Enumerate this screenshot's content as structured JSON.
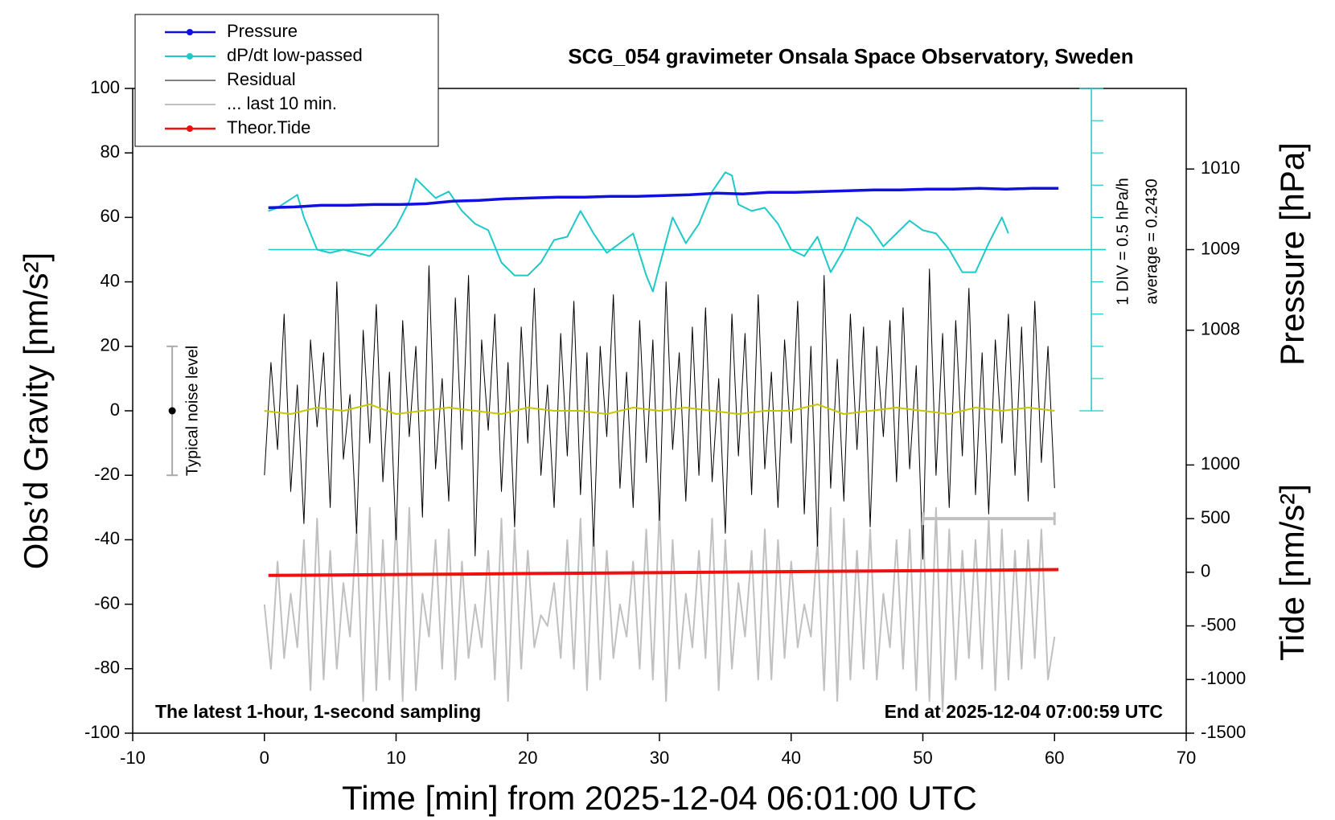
{
  "chart_data": {
    "type": "line",
    "title": "SCG_054 gravimeter Onsala Space Observatory, Sweden",
    "xlabel": "Time [min] from 2025-12-04 06:01:00 UTC",
    "ylabel": "Obs’d Gravity [nm/s²]",
    "y2label": "Pressure [hPa]",
    "y3label": "Tide [nm/s²]",
    "annotations": [
      "The latest 1-hour, 1-second sampling",
      "End at 2025-12-04 07:00:59 UTC"
    ],
    "xlim": [
      -10,
      70
    ],
    "xticks": [
      -10,
      0,
      10,
      20,
      30,
      40,
      50,
      60,
      70
    ],
    "ylim": [
      -100,
      100
    ],
    "yticks": [
      -100,
      -80,
      -60,
      -40,
      -20,
      0,
      20,
      40,
      60,
      80,
      100
    ],
    "y2lim": [
      1003,
      1011
    ],
    "y2ticks": [
      1008,
      1009,
      1010
    ],
    "y3lim": [
      -1500,
      4510
    ],
    "y3ticks": [
      -1500,
      -1000,
      -500,
      0,
      500,
      1000
    ],
    "legend_loc": "upper left",
    "dpdt_scale": {
      "x": 62.8,
      "ticks": [
        0,
        10,
        20,
        30,
        40,
        50,
        60,
        70,
        80,
        90,
        100
      ],
      "baseline": 50,
      "color": "#20c8c8",
      "label": "1 DIV = 0.5 hPa/h",
      "average_label": "average = 0.2430"
    },
    "noise_level": {
      "x": -7,
      "center": 0,
      "low": -20,
      "high": 20,
      "label": "Typical noise level"
    },
    "last10_bar": {
      "x": [
        50,
        60
      ],
      "value": 500,
      "axis": "y3",
      "color": "#c0c0c0"
    },
    "series": [
      {
        "name": "Pressure",
        "color": "#1010e0",
        "axis": "y2",
        "width": 3.5,
        "marker": true,
        "x": [
          0.3,
          2.3,
          4.3,
          6.3,
          8.3,
          10.3,
          12.3,
          14.3,
          16.3,
          18.3,
          20.3,
          22.3,
          24.3,
          26.3,
          28.3,
          30.3,
          32.3,
          34.3,
          36.3,
          38.3,
          40.3,
          42.3,
          44.3,
          46.3,
          48.3,
          50.3,
          52.3,
          54.3,
          56.3,
          58.3,
          60.3
        ],
        "values": [
          1009.52,
          1009.53,
          1009.55,
          1009.55,
          1009.56,
          1009.56,
          1009.57,
          1009.6,
          1009.61,
          1009.63,
          1009.64,
          1009.65,
          1009.65,
          1009.66,
          1009.66,
          1009.67,
          1009.68,
          1009.7,
          1009.69,
          1009.71,
          1009.71,
          1009.72,
          1009.73,
          1009.74,
          1009.74,
          1009.75,
          1009.75,
          1009.76,
          1009.75,
          1009.76,
          1009.76
        ]
      },
      {
        "name": "dP/dt low-passed",
        "color": "#20c8c8",
        "axis": "y",
        "width": 2,
        "marker": true,
        "x": [
          0.3,
          1,
          2.5,
          3,
          4,
          5,
          6,
          7,
          8,
          9,
          10,
          11,
          11.5,
          12,
          13,
          14,
          15,
          16,
          17,
          18,
          19,
          20,
          21,
          22,
          23,
          24,
          25,
          26,
          27,
          28,
          29,
          29.5,
          30,
          31,
          32,
          33,
          34,
          35,
          35.5,
          36,
          37,
          38,
          39,
          40,
          41,
          42,
          43,
          44,
          45,
          46,
          47,
          48,
          49,
          50,
          51,
          52,
          53,
          54,
          55,
          56,
          56.5
        ],
        "values": [
          62,
          63,
          67,
          60,
          50,
          49,
          50,
          49,
          48,
          52,
          57,
          65,
          72,
          70,
          66,
          68,
          62,
          58,
          56,
          46,
          42,
          42,
          46,
          53,
          54,
          62,
          55,
          49,
          52,
          55,
          42,
          37,
          45,
          60,
          52,
          58,
          68,
          74,
          73,
          64,
          62,
          63,
          58,
          50,
          48,
          54,
          43,
          50,
          60,
          57,
          51,
          55,
          59,
          56,
          55,
          50,
          43,
          43,
          52,
          60,
          55
        ]
      },
      {
        "name": "Residual",
        "color": "#000000",
        "axis": "y",
        "width": 1,
        "marker": false,
        "x": [
          0,
          0.5,
          1,
          1.5,
          2,
          2.5,
          3,
          3.5,
          4,
          4.5,
          5,
          5.5,
          6,
          6.5,
          7,
          7.5,
          8,
          8.5,
          9,
          9.5,
          10,
          10.5,
          11,
          11.5,
          12,
          12.5,
          13,
          13.5,
          14,
          14.5,
          15,
          15.5,
          16,
          16.5,
          17,
          17.5,
          18,
          18.5,
          19,
          19.5,
          20,
          20.5,
          21,
          21.5,
          22,
          22.5,
          23,
          23.5,
          24,
          24.5,
          25,
          25.5,
          26,
          26.5,
          27,
          27.5,
          28,
          28.5,
          29,
          29.5,
          30,
          30.5,
          31,
          31.5,
          32,
          32.5,
          33,
          33.5,
          34,
          34.5,
          35,
          35.5,
          36,
          36.5,
          37,
          37.5,
          38,
          38.5,
          39,
          39.5,
          40,
          40.5,
          41,
          41.5,
          42,
          42.5,
          43,
          43.5,
          44,
          44.5,
          45,
          45.5,
          46,
          46.5,
          47,
          47.5,
          48,
          48.5,
          49,
          49.5,
          50,
          50.5,
          51,
          51.5,
          52,
          52.5,
          53,
          53.5,
          54,
          54.5,
          55,
          55.5,
          56,
          56.5,
          57,
          57.5,
          58,
          58.5,
          59,
          59.5,
          60
        ],
        "values": [
          -20,
          15,
          -12,
          30,
          -25,
          8,
          -35,
          22,
          -5,
          18,
          -30,
          40,
          -15,
          5,
          -38,
          25,
          -10,
          33,
          -22,
          12,
          -40,
          28,
          -8,
          20,
          -33,
          45,
          -18,
          10,
          -28,
          35,
          -12,
          42,
          -45,
          22,
          -6,
          30,
          -25,
          15,
          -36,
          26,
          -10,
          38,
          -20,
          8,
          -30,
          24,
          -14,
          34,
          -26,
          18,
          -42,
          20,
          -8,
          36,
          -24,
          12,
          -30,
          28,
          -16,
          22,
          -34,
          40,
          -12,
          18,
          -28,
          26,
          -20,
          32,
          -22,
          10,
          -38,
          30,
          -14,
          24,
          -26,
          36,
          -18,
          12,
          -30,
          22,
          -10,
          34,
          -32,
          20,
          -42,
          42,
          -24,
          16,
          -28,
          30,
          -12,
          26,
          -36,
          20,
          -8,
          28,
          -22,
          32,
          -18,
          14,
          -46,
          44,
          -20,
          24,
          -30,
          28,
          -14,
          38,
          -26,
          18,
          -32,
          22,
          -10,
          30,
          -20,
          26,
          -28,
          34,
          -16,
          20,
          -24
        ]
      },
      {
        "name": "... last 10 min.",
        "color": "#c0c0c0",
        "axis": "y3",
        "width": 2,
        "marker": false,
        "x": [
          0,
          0.5,
          1,
          1.5,
          2,
          2.5,
          3,
          3.5,
          4,
          4.5,
          5,
          5.5,
          6,
          6.5,
          7,
          7.5,
          8,
          8.5,
          9,
          9.5,
          10,
          10.5,
          11,
          11.5,
          12,
          12.5,
          13,
          13.5,
          14,
          14.5,
          15,
          15.5,
          16,
          16.5,
          17,
          17.5,
          18,
          18.5,
          19,
          19.5,
          20,
          20.5,
          21,
          21.5,
          22,
          22.5,
          23,
          23.5,
          24,
          24.5,
          25,
          25.5,
          26,
          26.5,
          27,
          27.5,
          28,
          28.5,
          29,
          29.5,
          30,
          30.5,
          31,
          31.5,
          32,
          32.5,
          33,
          33.5,
          34,
          34.5,
          35,
          35.5,
          36,
          36.5,
          37,
          37.5,
          38,
          38.5,
          39,
          39.5,
          40,
          40.5,
          41,
          41.5,
          42,
          42.5,
          43,
          43.5,
          44,
          44.5,
          45,
          45.5,
          46,
          46.5,
          47,
          47.5,
          48,
          48.5,
          49,
          49.5,
          50,
          50.5,
          51,
          51.5,
          52,
          52.5,
          53,
          53.5,
          54,
          54.5,
          55,
          55.5,
          56,
          56.5,
          57,
          57.5,
          58,
          58.5,
          59,
          59.5,
          60
        ],
        "values": [
          -300,
          -900,
          100,
          -800,
          -200,
          -700,
          300,
          -1100,
          500,
          -1000,
          200,
          -900,
          -100,
          -600,
          400,
          -1200,
          600,
          -1100,
          300,
          -1000,
          500,
          -1200,
          600,
          -1100,
          -200,
          -600,
          300,
          -900,
          400,
          -1000,
          100,
          -800,
          -300,
          -700,
          200,
          -1000,
          500,
          -1200,
          400,
          -900,
          200,
          -700,
          -400,
          -500,
          -100,
          -800,
          300,
          -900,
          500,
          -1100,
          400,
          -1000,
          200,
          -800,
          -300,
          -600,
          100,
          -900,
          400,
          -1000,
          600,
          -1200,
          300,
          -900,
          -200,
          -700,
          200,
          -800,
          500,
          -1100,
          300,
          -900,
          -100,
          -600,
          200,
          -1000,
          400,
          -1000,
          300,
          -800,
          100,
          -700,
          -300,
          -600,
          300,
          -1100,
          600,
          -1200,
          500,
          -1000,
          200,
          -900,
          400,
          -1000,
          -200,
          -700,
          300,
          -900,
          400,
          -1100,
          500,
          -1200,
          600,
          -1300,
          400,
          -1000,
          200,
          -800,
          300,
          -900,
          500,
          -1100,
          400,
          -1000,
          200,
          -900,
          300,
          -800,
          400,
          -1000,
          -600
        ]
      },
      {
        "name": "Theor.Tide",
        "color": "#f01010",
        "axis": "y3",
        "width": 4,
        "marker": true,
        "x": [
          0.3,
          5.3,
          10.3,
          15.3,
          20.3,
          25.3,
          30.3,
          35.3,
          40.3,
          45.3,
          50.3,
          55.3,
          60.3
        ],
        "values": [
          -30,
          -26,
          -21,
          -17,
          -12,
          -8,
          -3,
          2,
          6,
          11,
          15,
          20,
          25
        ]
      },
      {
        "color": "#c8c800",
        "axis": "y",
        "width": 2,
        "marker": false,
        "x": [
          0,
          2,
          4,
          6,
          8,
          10,
          12,
          14,
          16,
          18,
          20,
          22,
          24,
          26,
          28,
          30,
          32,
          34,
          36,
          38,
          40,
          42,
          44,
          46,
          48,
          50,
          52,
          54,
          56,
          58,
          60
        ],
        "values": [
          0,
          -1,
          1,
          0,
          2,
          -1,
          0,
          1,
          0,
          -1,
          1,
          0,
          0,
          -1,
          1,
          0,
          1,
          0,
          -1,
          0,
          0,
          2,
          -1,
          0,
          1,
          0,
          -1,
          1,
          0,
          1,
          0
        ]
      }
    ]
  }
}
